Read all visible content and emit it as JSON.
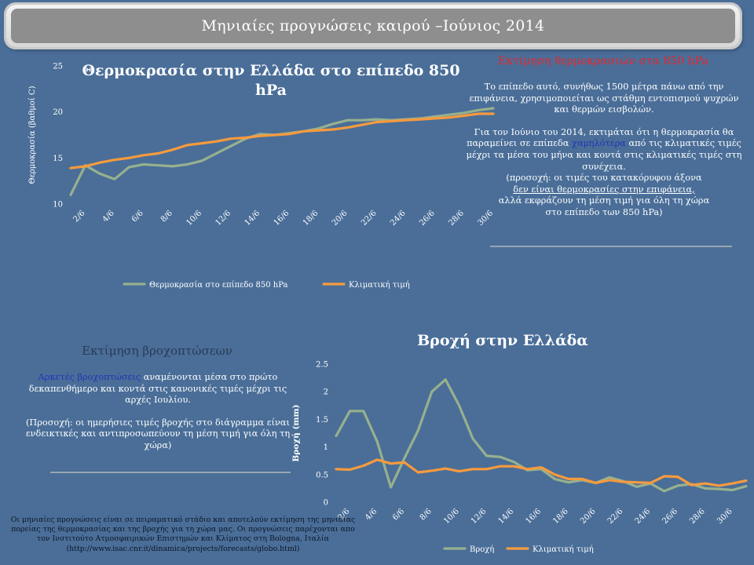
{
  "header": {
    "title": "Μηνιαίες προγνώσεις καιρού –Ιούνιος 2014"
  },
  "temperature_section": {
    "heading": "Εκτίμηση θερμοκρασιών στα 850 hPa",
    "para1": "Το επίπεδο αυτό, συνήθως 1500 μέτρα πάνω από την επιφάνεια, χρησιμοποιείται ως στάθμη εντοπισμού ψυχρών και θερμών εισβολών.",
    "para2_before": "Για τον Ιούνιο του 2014, εκτιμάται ότι η θερμοκρασία θα παραμείνει σε επίπεδα ",
    "para2_highlight": "χαμηλότερα",
    "para2_after": " από τις κλιματικές τιμές μέχρι τα μέσα του μήνα και κοντά στις κλιματικές τιμές στη συνέχεια.",
    "note_line1": "(προσοχή: οι τιμές του κατακόρυφου άξονα",
    "note_line2": "δεν είναι θερμοκρασίες στην επιφάνεια,",
    "note_line3": "αλλά εκφράζουν τη μέση τιμή για όλη τη χώρα",
    "note_line4": "στο επίπεδο των 850 hPa)"
  },
  "rain_section": {
    "heading": "Εκτίμηση βροχοπτώσεων",
    "para_highlight": "Αρκετές βροχοπτώσεις",
    "para_rest": " αναμένονται μέσα στο πρώτο δεκαπενθήμερο και κοντά στις κανονικές τιμές μέχρι τις αρχές Ιουλίου.",
    "note": "(Προσοχή: οι ημερήσιες τιμές βροχής στο διάγραμμα είναι ενδεικτικές και αντιπροσωπεύουν τη μέση τιμή για όλη τη χώρα)"
  },
  "footnote": "Οι μηνιαίες προγνώσεις είναι σε πειραματικό στάδιο και αποτελούν εκτίμηση της μηνιαίας πορείας της θερμοκρασίας και της βροχής για τη χώρα μας. Οι προγνώσεις παρέχονται απο τον Ινστιτούτο Ατμοσφαιρικών Επιστημών και Κλίματος στη Bologna, Ιταλία (http://www.isac.cnr.it/dinamica/projects/forecasts/globo.html)",
  "colors": {
    "series_green": "#97b08e",
    "series_orange": "#f79a3e",
    "heading_red": "#e8262a",
    "highlight_blue": "#2034b8"
  },
  "chart_data": [
    {
      "type": "line",
      "title": "Θερμοκρασία στην Ελλάδα στο επίπεδο 850 hPa",
      "ylabel": "Θερμοκρασία (βαθμοί C)",
      "xlabel": "",
      "ylim": [
        10,
        25
      ],
      "yticks": [
        "10",
        "15",
        "20",
        "25"
      ],
      "x": [
        "1/6",
        "2/6",
        "3/6",
        "4/6",
        "5/6",
        "6/6",
        "7/6",
        "8/6",
        "9/6",
        "10/6",
        "11/6",
        "12/6",
        "13/6",
        "14/6",
        "15/6",
        "16/6",
        "17/6",
        "18/6",
        "19/6",
        "20/6",
        "21/6",
        "22/6",
        "23/6",
        "24/6",
        "25/6",
        "26/6",
        "27/6",
        "28/6",
        "29/6",
        "30/6"
      ],
      "xtick_labels": [
        "2/6",
        "4/6",
        "6/6",
        "8/6",
        "10/6",
        "12/6",
        "14/6",
        "16/6",
        "18/6",
        "20/6",
        "22/6",
        "24/6",
        "26/6",
        "28/6",
        "30/6"
      ],
      "series": [
        {
          "name": "Θερμοκρασία στο επίπεδο 850 hPa",
          "color": "#97b08e",
          "values": [
            11.0,
            14.2,
            13.3,
            12.7,
            14.0,
            14.3,
            14.2,
            14.1,
            14.3,
            14.7,
            15.5,
            16.3,
            17.1,
            17.6,
            17.5,
            17.7,
            17.9,
            18.2,
            18.7,
            19.1,
            19.1,
            19.2,
            19.1,
            19.2,
            19.3,
            19.5,
            19.7,
            19.9,
            20.2,
            20.4
          ]
        },
        {
          "name": "Κλιματική τιμή",
          "color": "#f79a3e",
          "values": [
            13.9,
            14.1,
            14.5,
            14.8,
            15.0,
            15.3,
            15.5,
            15.9,
            16.4,
            16.6,
            16.8,
            17.1,
            17.2,
            17.4,
            17.5,
            17.6,
            17.9,
            18.0,
            18.1,
            18.3,
            18.6,
            18.9,
            19.0,
            19.1,
            19.2,
            19.3,
            19.4,
            19.6,
            19.8,
            19.8
          ]
        }
      ],
      "legend": "bottom"
    },
    {
      "type": "line",
      "title": "Βροχή στην Ελλάδα",
      "ylabel": "Βροχή (mm)",
      "xlabel": "",
      "ylim": [
        0,
        2.5
      ],
      "yticks": [
        "0",
        "0.5",
        "1",
        "1.5",
        "2",
        "2.5"
      ],
      "x": [
        "1/6",
        "2/6",
        "3/6",
        "4/6",
        "5/6",
        "6/6",
        "7/6",
        "8/6",
        "9/6",
        "10/6",
        "11/6",
        "12/6",
        "13/6",
        "14/6",
        "15/6",
        "16/6",
        "17/6",
        "18/6",
        "19/6",
        "20/6",
        "21/6",
        "22/6",
        "23/6",
        "24/6",
        "25/6",
        "26/6",
        "27/6",
        "28/6",
        "29/6",
        "30/6",
        "1/7"
      ],
      "xtick_labels": [
        "2/6",
        "4/6",
        "6/6",
        "8/6",
        "10/6",
        "12/6",
        "14/6",
        "16/6",
        "18/6",
        "20/6",
        "22/6",
        "24/6",
        "26/6",
        "28/6",
        "30/6"
      ],
      "series": [
        {
          "name": "Βροχή",
          "color": "#97b08e",
          "values": [
            1.2,
            1.65,
            1.65,
            1.1,
            0.27,
            0.8,
            1.3,
            2.0,
            2.22,
            1.75,
            1.15,
            0.84,
            0.82,
            0.73,
            0.58,
            0.6,
            0.42,
            0.36,
            0.4,
            0.35,
            0.45,
            0.38,
            0.28,
            0.34,
            0.2,
            0.3,
            0.33,
            0.25,
            0.24,
            0.22,
            0.29
          ]
        },
        {
          "name": "Κλιματική τιμή",
          "color": "#f79a3e",
          "values": [
            0.6,
            0.59,
            0.66,
            0.77,
            0.7,
            0.72,
            0.54,
            0.57,
            0.61,
            0.56,
            0.6,
            0.6,
            0.65,
            0.65,
            0.6,
            0.63,
            0.5,
            0.42,
            0.42,
            0.35,
            0.4,
            0.37,
            0.36,
            0.35,
            0.47,
            0.46,
            0.31,
            0.34,
            0.3,
            0.34,
            0.39
          ]
        }
      ],
      "legend": "bottom"
    }
  ]
}
